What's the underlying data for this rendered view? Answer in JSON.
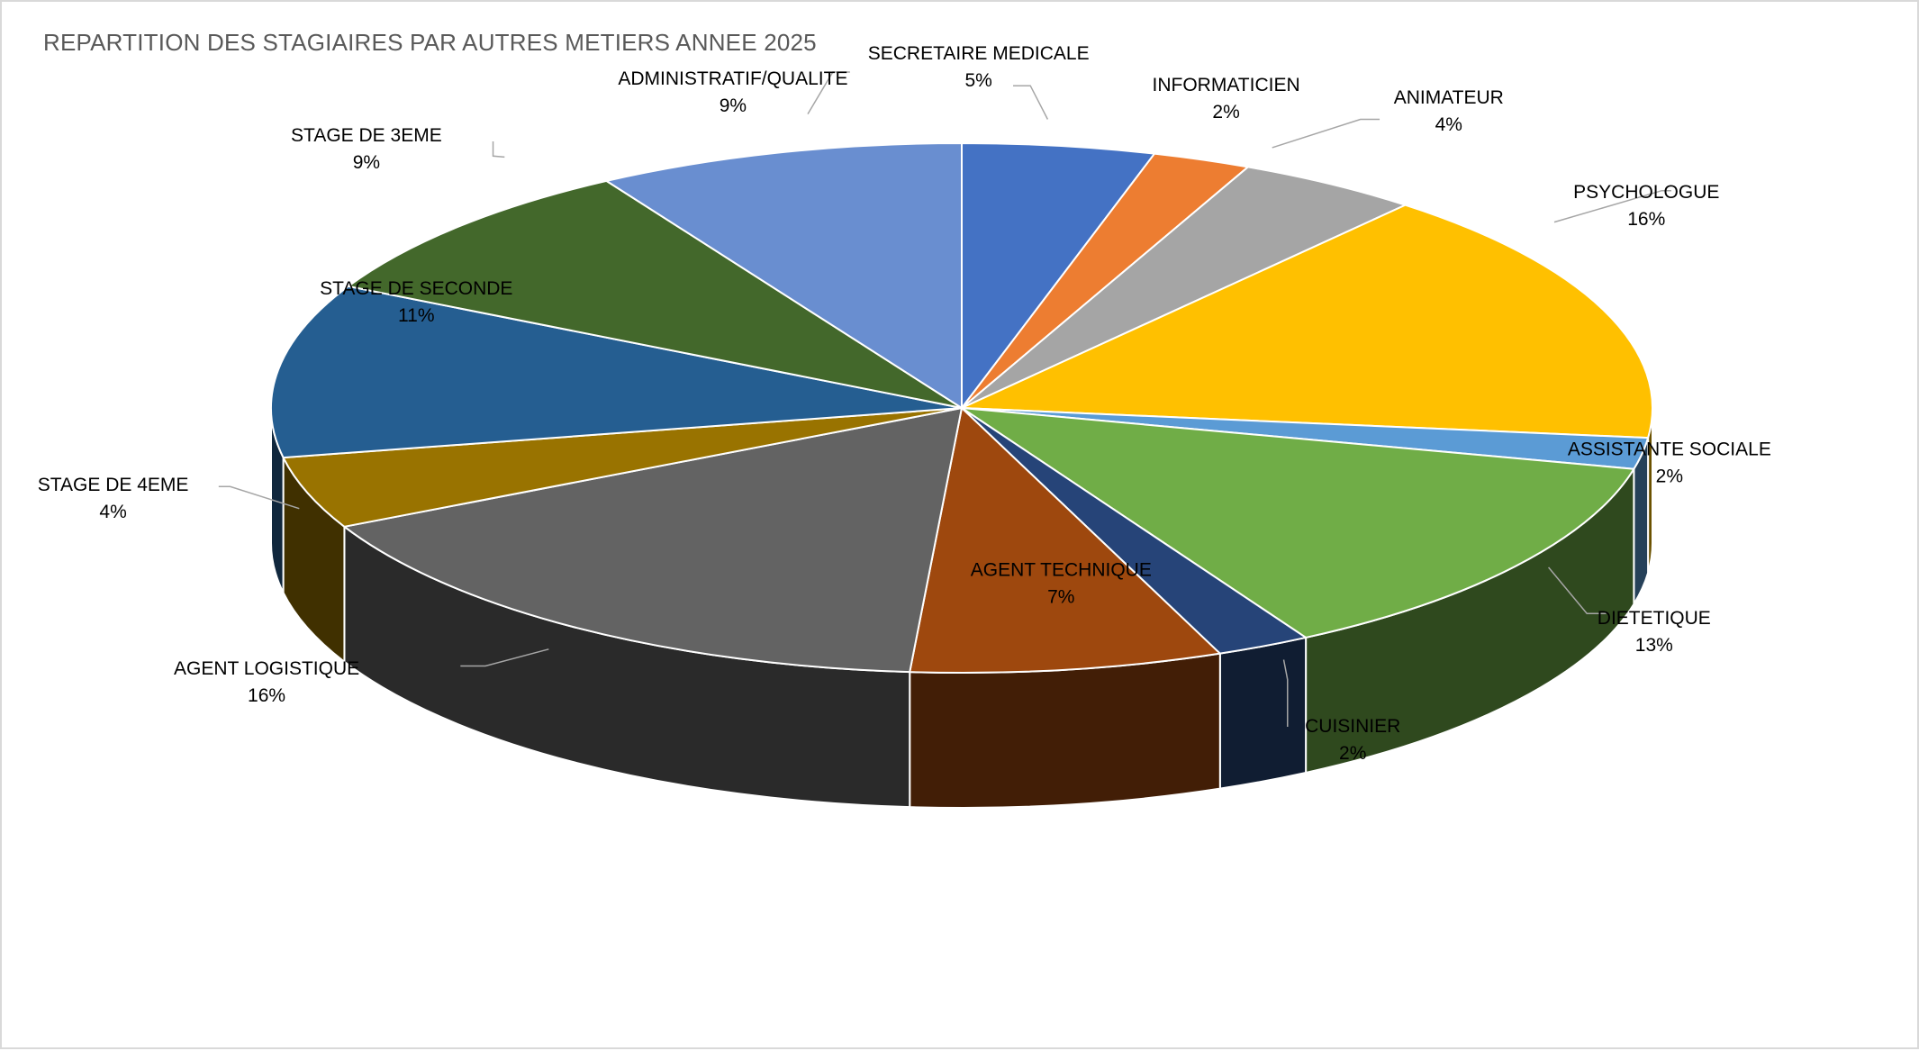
{
  "chart_data": {
    "type": "pie",
    "title": "REPARTITION DES STAGIAIRES PAR AUTRES METIERS ANNEE 2025",
    "slices": [
      {
        "name": "SECRETAIRE MEDICALE",
        "label": "5%",
        "value": 4.5,
        "color": "#4472c4"
      },
      {
        "name": "INFORMATICIEN",
        "label": "2%",
        "value": 2.3,
        "color": "#ed7d31"
      },
      {
        "name": "ANIMATEUR",
        "label": "4%",
        "value": 4.3,
        "color": "#a5a5a5"
      },
      {
        "name": "PSYCHOLOGUE",
        "label": "16%",
        "value": 15.7,
        "color": "#ffc000"
      },
      {
        "name": "ASSISTANTE SOCIALE",
        "label": "2%",
        "value": 1.9,
        "color": "#5b9bd5"
      },
      {
        "name": "DIETETIQUE",
        "label": "13%",
        "value": 13.0,
        "color": "#70ad47"
      },
      {
        "name": "CUISINIER",
        "label": "2%",
        "value": 2.2,
        "color": "#264478"
      },
      {
        "name": "AGENT TECHNIQUE",
        "label": "7%",
        "value": 7.3,
        "color": "#9e480e"
      },
      {
        "name": "AGENT LOGISTIQUE",
        "label": "16%",
        "value": 16.4,
        "color": "#636363"
      },
      {
        "name": "STAGE DE 4EME",
        "label": "4%",
        "value": 4.4,
        "color": "#997300"
      },
      {
        "name": "STAGE DE SECONDE",
        "label": "11%",
        "value": 10.6,
        "color": "#255e91"
      },
      {
        "name": "STAGE DE 3EME",
        "label": "9%",
        "value": 8.8,
        "color": "#43682b"
      },
      {
        "name": "ADMINISTRATIF/QUALITE",
        "label": "9%",
        "value": 8.6,
        "color": "#698ed0"
      }
    ],
    "start": "top",
    "direction": "clockwise",
    "style": "3d-pie",
    "legend": "none",
    "data_labels": "category name and percentage"
  }
}
